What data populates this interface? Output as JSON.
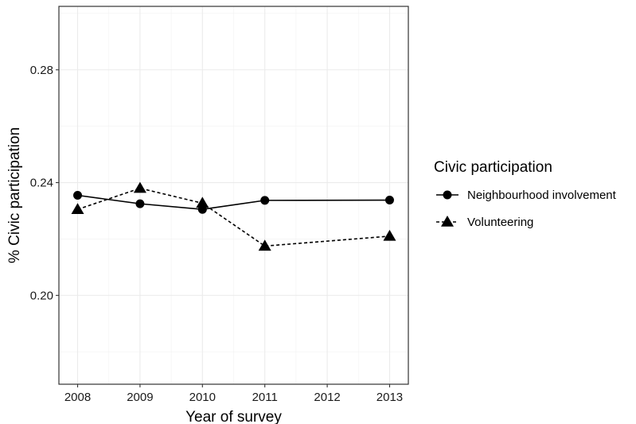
{
  "chart_data": {
    "type": "line",
    "title": "",
    "xlabel": "Year of survey",
    "ylabel": "% Civic participation",
    "x": [
      2008,
      2009,
      2010,
      2011,
      2012,
      2013
    ],
    "x_ticks": [
      "2008",
      "2009",
      "2010",
      "2011",
      "2012",
      "2013"
    ],
    "xlim": [
      2007.7,
      2013.3
    ],
    "y_ticks": [
      "0.20",
      "0.24",
      "0.28"
    ],
    "ylim": [
      0.1685,
      0.3025
    ],
    "grid": true,
    "legend": {
      "title": "Civic participation",
      "placement": "right"
    },
    "series": [
      {
        "name": "Neighbourhood involvement",
        "marker": "circle",
        "line_style": "solid",
        "points": [
          {
            "x": 2008,
            "y": 0.2355
          },
          {
            "x": 2009,
            "y": 0.2325
          },
          {
            "x": 2010,
            "y": 0.2305
          },
          {
            "x": 2011,
            "y": 0.2337
          },
          {
            "x": 2013,
            "y": 0.2338
          }
        ]
      },
      {
        "name": "Volunteering",
        "marker": "triangle",
        "line_style": "dashed",
        "points": [
          {
            "x": 2008,
            "y": 0.2305
          },
          {
            "x": 2009,
            "y": 0.238
          },
          {
            "x": 2010,
            "y": 0.2327
          },
          {
            "x": 2011,
            "y": 0.2175
          },
          {
            "x": 2013,
            "y": 0.221
          }
        ]
      }
    ]
  }
}
